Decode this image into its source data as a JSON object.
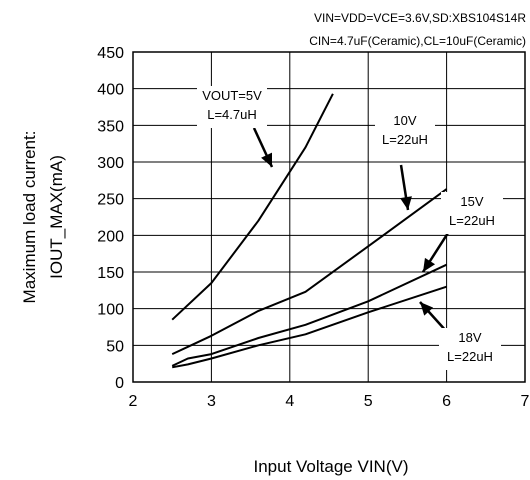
{
  "chart_data": {
    "type": "line",
    "conditions": [
      "VIN=VDD=VCE=3.6V,SD:XBS104S14R",
      "CIN=4.7uF(Ceramic),CL=10uF(Ceramic)"
    ],
    "xlabel": "Input Voltage VIN(V)",
    "ylabel_lines": [
      "Maximum load current:",
      "IOUT_MAX(mA)"
    ],
    "xlim": [
      2,
      7
    ],
    "ylim": [
      0,
      450
    ],
    "xticks": [
      2,
      3,
      4,
      5,
      6,
      7
    ],
    "yticks": [
      0,
      50,
      100,
      150,
      200,
      250,
      300,
      350,
      400,
      450
    ],
    "grid": true,
    "series": [
      {
        "name": "VOUT=5V L=4.7uH",
        "x": [
          2.5,
          3.0,
          3.6,
          4.2,
          4.55
        ],
        "y": [
          85,
          135,
          220,
          320,
          393
        ]
      },
      {
        "name": "10V L=22uH",
        "x": [
          2.5,
          2.7,
          3.0,
          3.6,
          4.2,
          5.0,
          6.0
        ],
        "y": [
          38,
          48,
          63,
          97,
          123,
          185,
          263
        ]
      },
      {
        "name": "15V L=22uH",
        "x": [
          2.5,
          2.7,
          3.0,
          3.6,
          4.2,
          5.0,
          6.0
        ],
        "y": [
          22,
          32,
          38,
          60,
          78,
          110,
          160
        ]
      },
      {
        "name": "18V L=22uH",
        "x": [
          2.5,
          2.7,
          3.0,
          3.6,
          4.2,
          5.0,
          6.0
        ],
        "y": [
          20,
          24,
          32,
          50,
          65,
          95,
          130
        ]
      }
    ],
    "annotations": [
      {
        "lines": [
          "VOUT=5V",
          "L=4.7uH"
        ]
      },
      {
        "lines": [
          "10V",
          "L=22uH"
        ]
      },
      {
        "lines": [
          "15V",
          "L=22uH"
        ]
      },
      {
        "lines": [
          "18V",
          "L=22uH"
        ]
      }
    ]
  }
}
